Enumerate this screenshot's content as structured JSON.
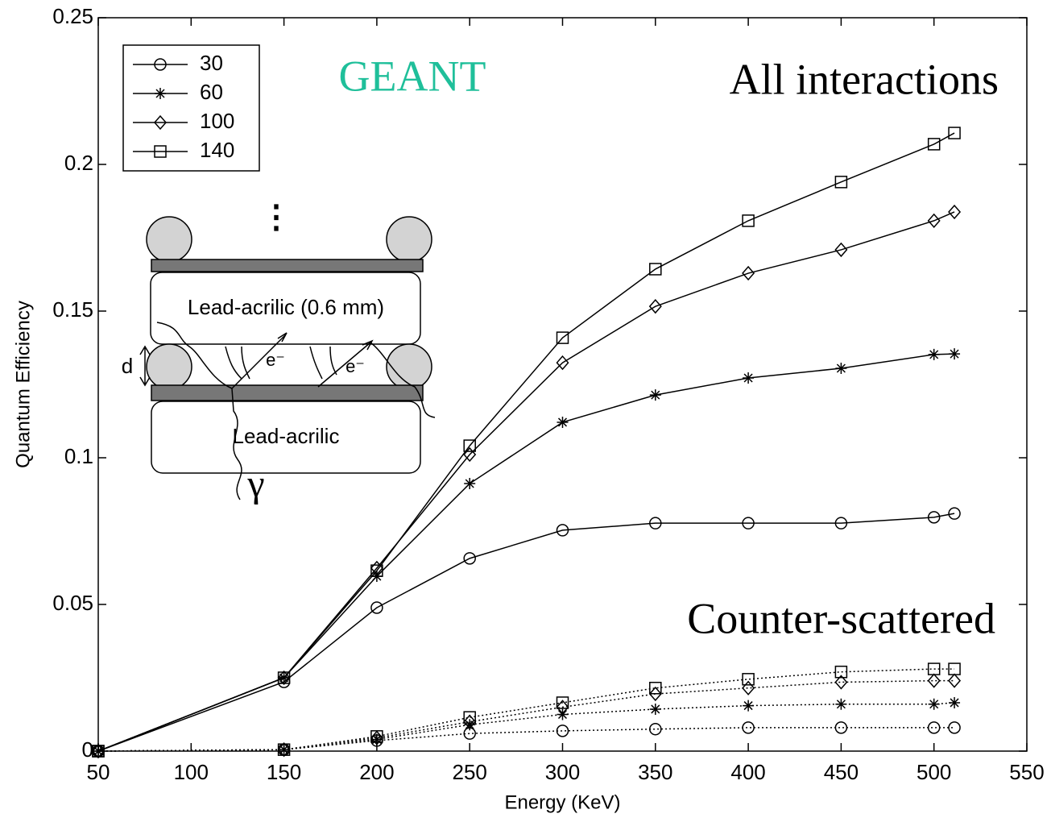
{
  "chart_data": {
    "type": "line",
    "x_label": "Energy (KeV)",
    "y_label": "Quantum Efficiency",
    "annotations": [
      "GEANT",
      "All interactions",
      "Counter-scattered"
    ],
    "annotation_colors": [
      "#1fbf9a",
      "#000000",
      "#000000"
    ],
    "x": [
      50,
      150,
      200,
      250,
      300,
      350,
      400,
      450,
      500,
      511
    ],
    "series": [
      {
        "name": "30",
        "marker": "circle",
        "color": "#000000",
        "values": [
          0,
          0.0236,
          0.0489,
          0.0657,
          0.0753,
          0.0777,
          0.0777,
          0.0777,
          0.0797,
          0.081
        ],
        "counter_values": [
          0,
          0.0005,
          0.0036,
          0.006,
          0.0069,
          0.0075,
          0.008,
          0.008,
          0.008,
          0.008
        ]
      },
      {
        "name": "60",
        "marker": "star",
        "color": "#000000",
        "values": [
          0,
          0.025,
          0.0596,
          0.0912,
          0.1121,
          0.1214,
          0.1272,
          0.1305,
          0.1352,
          0.1354
        ],
        "counter_values": [
          0,
          0.0005,
          0.004,
          0.009,
          0.0125,
          0.0143,
          0.0155,
          0.016,
          0.016,
          0.0165
        ]
      },
      {
        "name": "100",
        "marker": "diamond",
        "color": "#000000",
        "values": [
          0,
          0.025,
          0.0624,
          0.1011,
          0.1324,
          0.1516,
          0.1629,
          0.1709,
          0.1808,
          0.1838
        ],
        "counter_values": [
          0,
          0.0005,
          0.0045,
          0.01,
          0.015,
          0.0195,
          0.0215,
          0.0235,
          0.024,
          0.024
        ]
      },
      {
        "name": "140",
        "marker": "square",
        "color": "#000000",
        "values": [
          0,
          0.025,
          0.0615,
          0.1041,
          0.1409,
          0.1643,
          0.1808,
          0.194,
          0.2069,
          0.2107
        ],
        "counter_values": [
          0,
          0.0005,
          0.005,
          0.0115,
          0.0165,
          0.0215,
          0.0245,
          0.027,
          0.028,
          0.028
        ]
      }
    ],
    "line_style": "solid",
    "counter_line_style": "dotted",
    "legend": "upper left",
    "xlim": [
      50,
      550
    ],
    "xticks": [
      50,
      100,
      150,
      200,
      250,
      300,
      350,
      400,
      450,
      500,
      550
    ],
    "ylim": [
      0,
      0.25
    ],
    "yticks": [
      0,
      0.05,
      0.1,
      0.15,
      0.2,
      0.25
    ],
    "grid": false,
    "inset": {
      "layer_labels": [
        "Lead-acrilic (0.6 mm)",
        "Lead-acrilic"
      ],
      "gap_label": "d",
      "electron_labels": [
        "e⁻",
        "e⁻"
      ],
      "photon_label": "γ",
      "ellipsis": "⋮"
    }
  }
}
